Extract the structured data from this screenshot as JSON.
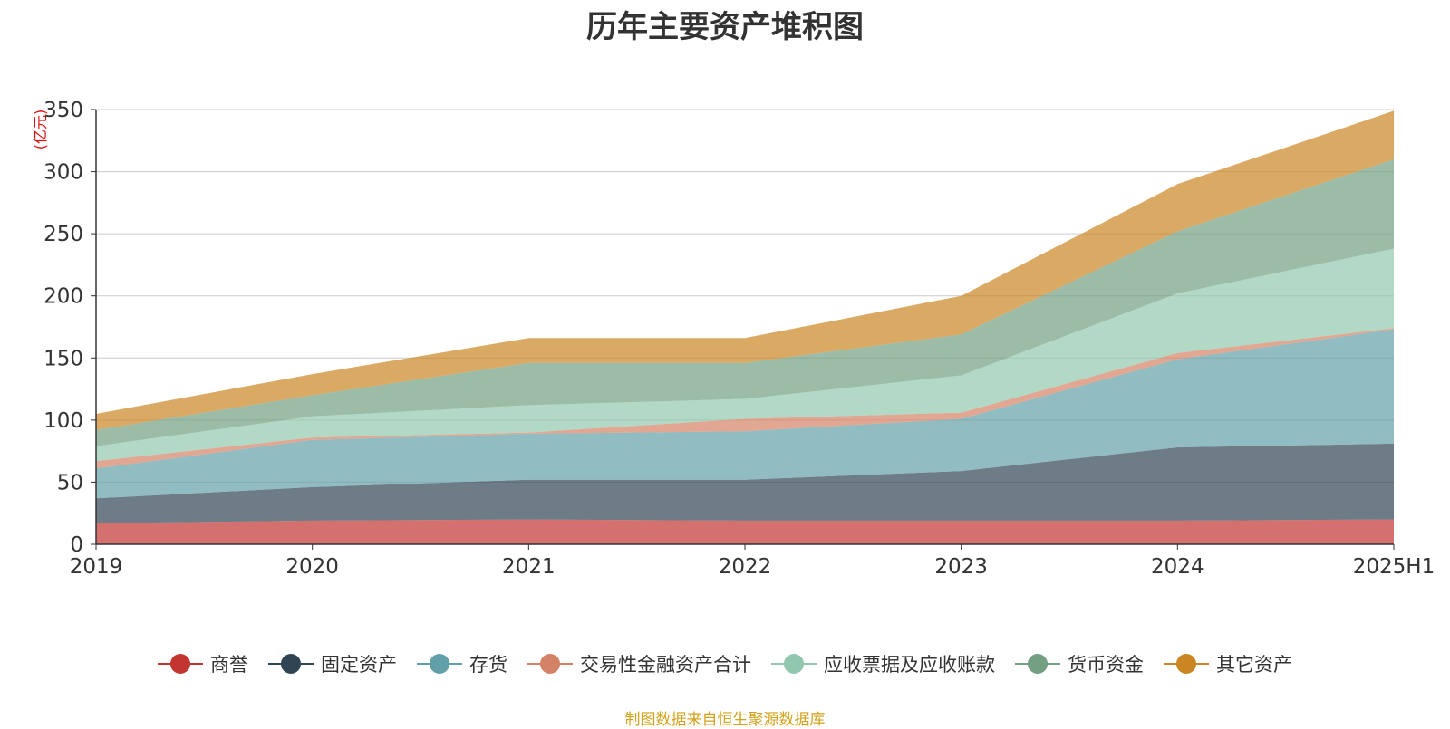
{
  "chart_data": {
    "type": "area",
    "stacked": true,
    "title": "历年主要资产堆积图",
    "ylabel": "(亿元)",
    "xlabel": "",
    "categories": [
      "2019",
      "2020",
      "2021",
      "2022",
      "2023",
      "2024",
      "2025H1"
    ],
    "yticks": [
      0,
      50,
      100,
      150,
      200,
      250,
      300,
      350
    ],
    "ylim": [
      0,
      350
    ],
    "grid": true,
    "legend_position": "bottom",
    "series": [
      {
        "name": "商誉",
        "color": "#c23531",
        "values": [
          17,
          19,
          20,
          19,
          19,
          19,
          20
        ]
      },
      {
        "name": "固定资产",
        "color": "#2f4554",
        "values": [
          20,
          27,
          32,
          33,
          40,
          59,
          61
        ]
      },
      {
        "name": "存货",
        "color": "#61a0a8",
        "values": [
          24,
          38,
          37,
          39,
          42,
          71,
          92
        ]
      },
      {
        "name": "交易性金融资产合计",
        "color": "#d48265",
        "values": [
          6,
          2,
          1,
          10,
          5,
          5,
          1
        ]
      },
      {
        "name": "应收票据及应收账款",
        "color": "#91c7ae",
        "values": [
          12,
          17,
          22,
          16,
          30,
          48,
          64
        ]
      },
      {
        "name": "货币资金",
        "color": "#749f83",
        "values": [
          13,
          17,
          34,
          29,
          33,
          50,
          72
        ]
      },
      {
        "name": "其它资产",
        "color": "#ca8622",
        "values": [
          13,
          17,
          20,
          20,
          31,
          38,
          39
        ]
      }
    ],
    "source_note": "制图数据来自恒生聚源数据库"
  }
}
